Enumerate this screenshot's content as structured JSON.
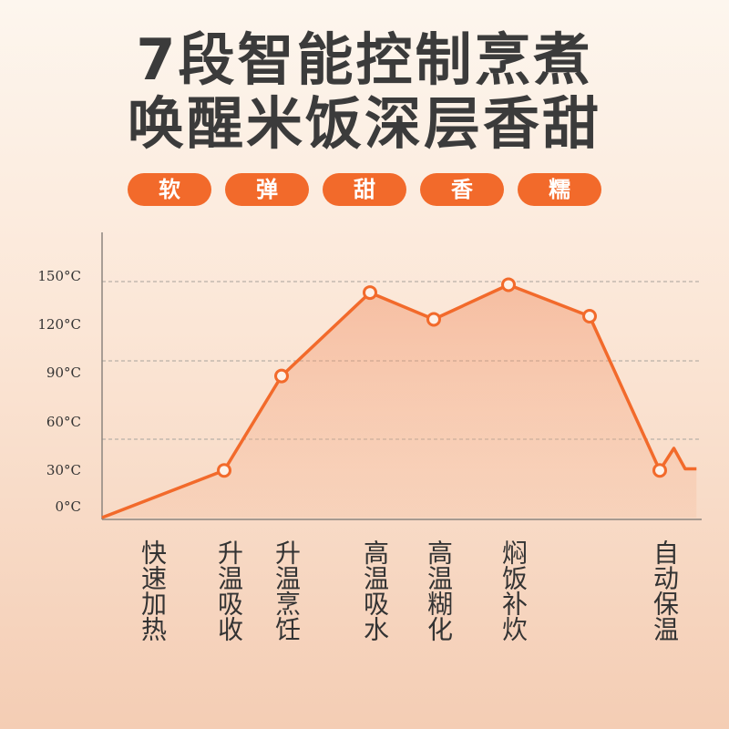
{
  "headline": {
    "line1": "7段智能控制烹煮",
    "line2": "唤醒米饭深层香甜"
  },
  "tags": [
    "软",
    "弹",
    "甜",
    "香",
    "糯"
  ],
  "colors": {
    "accent": "#f26a2b",
    "text": "#333333",
    "grid": "#b8b0a8"
  },
  "chart_data": {
    "type": "line",
    "title": "",
    "xlabel": "",
    "ylabel": "",
    "y_ticks": [
      {
        "value": 0,
        "label": "0°C"
      },
      {
        "value": 30,
        "label": "30°C"
      },
      {
        "value": 60,
        "label": "60°C"
      },
      {
        "value": 90,
        "label": "90°C"
      },
      {
        "value": 120,
        "label": "120°C"
      },
      {
        "value": 150,
        "label": "150°C"
      }
    ],
    "ylim": [
      0,
      150
    ],
    "grid": "dashed",
    "points": [
      {
        "x": 0,
        "y": 0,
        "marker": false
      },
      {
        "x": 1,
        "y": 30,
        "marker": true
      },
      {
        "x": 2,
        "y": 90,
        "marker": true
      },
      {
        "x": 3,
        "y": 143,
        "marker": true
      },
      {
        "x": 4,
        "y": 126,
        "marker": true
      },
      {
        "x": 5,
        "y": 148,
        "marker": true
      },
      {
        "x": 6,
        "y": 128,
        "marker": true
      },
      {
        "x": 7,
        "y": 30,
        "marker": true
      },
      {
        "x": 7.25,
        "y": 44,
        "marker": false
      },
      {
        "x": 7.45,
        "y": 31,
        "marker": false
      },
      {
        "x": 7.65,
        "y": 31,
        "marker": false
      }
    ],
    "stages": [
      {
        "label": "快速加热",
        "x": 0.5
      },
      {
        "label": "升温吸收",
        "x": 1
      },
      {
        "label": "升温烹饪",
        "x": 2
      },
      {
        "label": "高温吸水",
        "x": 3
      },
      {
        "label": "高温糊化",
        "x": 4
      },
      {
        "label": "焖饭补炊",
        "x": 5
      },
      {
        "label": "自动保温",
        "x": 7
      }
    ]
  }
}
